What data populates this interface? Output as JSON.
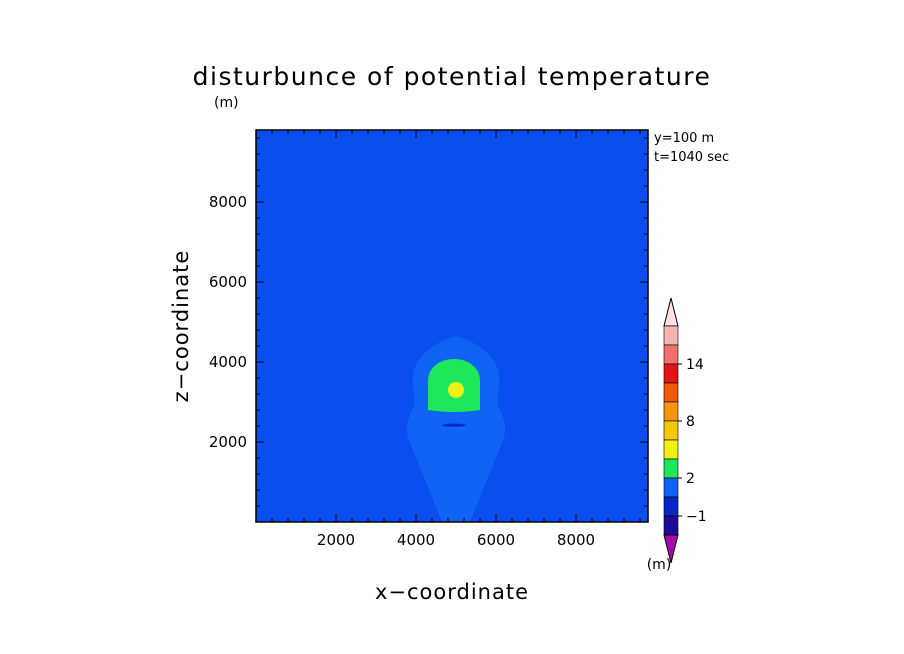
{
  "chart_data": {
    "type": "contour",
    "title": "disturbunce of potential temperature",
    "unit_label": "(m)",
    "xlabel": "x−coordinate",
    "ylabel": "z−coordinate",
    "xlim": [
      0,
      9800
    ],
    "ylim": [
      0,
      9800
    ],
    "x_ticks": [
      2000,
      4000,
      6000,
      8000
    ],
    "y_ticks": [
      2000,
      4000,
      6000,
      8000
    ],
    "x_tick_labels": [
      "2000",
      "4000",
      "6000",
      "8000"
    ],
    "y_tick_labels": [
      "2000",
      "4000",
      "6000",
      "8000"
    ],
    "info": {
      "y_line": "y=100 m",
      "t_line": "t=1040 sec"
    },
    "background_color": "#0a4ef0",
    "features": [
      {
        "level": "0 to 2",
        "color": "#0f63f5",
        "shape": "plume",
        "x_center": 5000,
        "profile": [
          {
            "z": 0,
            "half_width": 350
          },
          {
            "z": 500,
            "half_width": 550
          },
          {
            "z": 1000,
            "half_width": 750
          },
          {
            "z": 1600,
            "half_width": 1000
          },
          {
            "z": 2200,
            "half_width": 1250
          },
          {
            "z": 2600,
            "half_width": 1200
          },
          {
            "z": 3000,
            "half_width": 1000
          },
          {
            "z": 3400,
            "half_width": 1100
          },
          {
            "z": 3900,
            "half_width": 1050
          },
          {
            "z": 4300,
            "half_width": 750
          },
          {
            "z": 4550,
            "half_width": 300
          }
        ]
      },
      {
        "level": "2 to 4",
        "color": "#1de85a",
        "shape": "region",
        "x_center": 4950,
        "z_center": 3400,
        "x_radius": 650,
        "z_top": 4100,
        "z_bottom": 2800
      },
      {
        "level": "4 to 6",
        "color": "#f0f014",
        "shape": "blob",
        "x_center": 5000,
        "z_center": 3300,
        "x_radius": 200,
        "z_radius": 200
      },
      {
        "level": "-1 to 0",
        "color": "#0826c8",
        "shape": "sliver",
        "x_center": 4950,
        "z_center": 2420,
        "x_radius": 300,
        "z_radius": 40
      }
    ],
    "colorbar": {
      "unit_label": "(m)",
      "tick_labels": [
        {
          "label": "14",
          "boundary": 14
        },
        {
          "label": "8",
          "boundary": 8
        },
        {
          "label": "2",
          "boundary": 2
        },
        {
          "label": "−1",
          "boundary": -1
        }
      ],
      "bins": [
        {
          "range": "below -2",
          "color": "#a80ca8",
          "kind": "arrow-down"
        },
        {
          "range": "-2 to -1",
          "color": "#1e0a96",
          "kind": "bin"
        },
        {
          "range": "-1 to 0",
          "color": "#0826c8",
          "kind": "bin"
        },
        {
          "range": "0 to 2",
          "color": "#0f63f5",
          "kind": "bin"
        },
        {
          "range": "2 to 4",
          "color": "#1de85a",
          "kind": "bin"
        },
        {
          "range": "4 to 6",
          "color": "#f0f014",
          "kind": "bin"
        },
        {
          "range": "6 to 8",
          "color": "#f5c80a",
          "kind": "bin"
        },
        {
          "range": "8 to 10",
          "color": "#f5960a",
          "kind": "bin"
        },
        {
          "range": "10 to 12",
          "color": "#f05a0a",
          "kind": "bin"
        },
        {
          "range": "12 to 14",
          "color": "#e61414",
          "kind": "bin"
        },
        {
          "range": "14 to 16",
          "color": "#f07070",
          "kind": "bin"
        },
        {
          "range": "16 to 18",
          "color": "#f5b4b4",
          "kind": "bin"
        },
        {
          "range": "above 18",
          "color": "#fbe1e1",
          "kind": "arrow-up"
        }
      ]
    }
  }
}
